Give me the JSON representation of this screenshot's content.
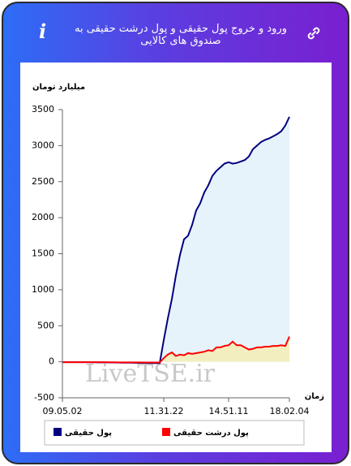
{
  "chart_data": {
    "type": "line",
    "title": "ورود و خروج پول حقیقی و پول درشت حقیقی به صندوق های کالایی",
    "y_label": "میلیارد تومان",
    "x_label": "زمان",
    "watermark": "LiveTSE.ir",
    "categories": [
      "09.05.02",
      null,
      null,
      null,
      null,
      null,
      null,
      null,
      null,
      null,
      null,
      null,
      null,
      null,
      null,
      null,
      null,
      null,
      null,
      null,
      null,
      null,
      null,
      null,
      null,
      "11.31.22",
      null,
      null,
      null,
      null,
      null,
      null,
      null,
      null,
      null,
      null,
      null,
      null,
      null,
      null,
      null,
      "14.51.11",
      null,
      null,
      null,
      null,
      null,
      null,
      null,
      null,
      null,
      null,
      null,
      null,
      null,
      null,
      "18.02.04"
    ],
    "series": [
      {
        "name": "پول حقیقی",
        "color": "#000080",
        "area_color": "#e6f3fb",
        "values": [
          -5,
          -5,
          -5,
          -5,
          -5,
          -6,
          -6,
          -7,
          -7,
          -8,
          -8,
          -9,
          -10,
          -10,
          -11,
          -12,
          -12,
          -13,
          -14,
          -15,
          -16,
          -17,
          -18,
          -19,
          -20,
          300,
          600,
          870,
          1200,
          1480,
          1700,
          1750,
          1900,
          2100,
          2200,
          2350,
          2450,
          2580,
          2650,
          2700,
          2750,
          2770,
          2750,
          2760,
          2780,
          2800,
          2850,
          2950,
          3000,
          3050,
          3080,
          3100,
          3130,
          3160,
          3200,
          3280,
          3400
        ]
      },
      {
        "name": "پول درشت حقیقی",
        "color": "#ff0000",
        "area_color": "#f2eec0",
        "values": [
          -5,
          -5,
          -5,
          -5,
          -5,
          -5,
          -5,
          -6,
          -6,
          -6,
          -6,
          -7,
          -7,
          -7,
          -8,
          -8,
          -8,
          -9,
          -9,
          -9,
          -10,
          -10,
          -10,
          -10,
          -10,
          50,
          100,
          130,
          80,
          100,
          90,
          120,
          110,
          120,
          130,
          140,
          160,
          150,
          200,
          200,
          220,
          230,
          280,
          230,
          230,
          200,
          170,
          180,
          200,
          200,
          210,
          210,
          220,
          220,
          230,
          220,
          350
        ]
      }
    ],
    "ylim": [
      -500,
      3500
    ],
    "yticks": [
      -500,
      0,
      500,
      1000,
      1500,
      2000,
      2500,
      3000,
      3500
    ],
    "grid": false
  }
}
